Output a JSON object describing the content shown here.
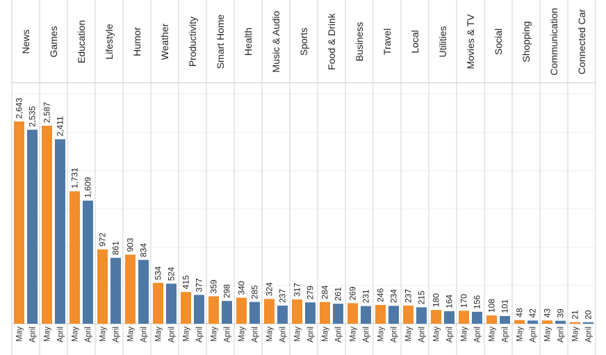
{
  "chart_data": {
    "type": "bar",
    "categories": [
      "News",
      "Games",
      "Education",
      "Lifestyle",
      "Humor",
      "Weather",
      "Productivity",
      "Smart Home",
      "Health",
      "Music & Audio",
      "Sports",
      "Food & Drink",
      "Business",
      "Travel",
      "Local",
      "Utilities",
      "Movies & TV",
      "Social",
      "Shopping",
      "Communication",
      "Connected Car"
    ],
    "sub_categories": [
      "May",
      "April"
    ],
    "series": [
      {
        "name": "May",
        "color": "#F28E2B",
        "values": [
          2643,
          2587,
          1731,
          972,
          903,
          534,
          415,
          359,
          340,
          324,
          317,
          284,
          269,
          246,
          237,
          180,
          170,
          108,
          48,
          43,
          21
        ]
      },
      {
        "name": "April",
        "color": "#4E79A7",
        "values": [
          2535,
          2411,
          1609,
          861,
          834,
          524,
          377,
          298,
          285,
          237,
          279,
          261,
          231,
          234,
          215,
          164,
          156,
          101,
          42,
          39,
          20
        ]
      }
    ],
    "value_labels": {
      "May": [
        "2,643",
        "2,587",
        "1,731",
        "972",
        "903",
        "534",
        "415",
        "359",
        "340",
        "324",
        "317",
        "284",
        "269",
        "246",
        "237",
        "180",
        "170",
        "108",
        "48",
        "43",
        "21"
      ],
      "April": [
        "2,535",
        "2,411",
        "1,609",
        "861",
        "834",
        "524",
        "377",
        "298",
        "285",
        "237",
        "279",
        "261",
        "231",
        "234",
        "215",
        "164",
        "156",
        "101",
        "42",
        "39",
        "20"
      ]
    },
    "y_range": [
      0,
      3150
    ],
    "grid": true,
    "legend": "none"
  }
}
